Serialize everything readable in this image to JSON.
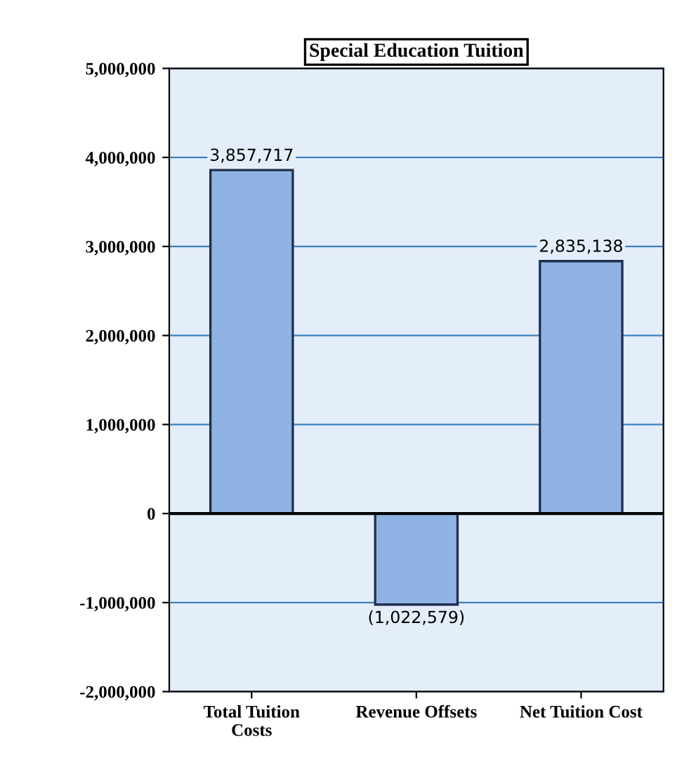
{
  "chart_data": {
    "type": "bar",
    "title": "Special Education Tuition",
    "categories": [
      "Total Tuition\nCosts",
      "Revenue Offsets",
      "Net Tuition Cost"
    ],
    "values": [
      3857717,
      -1022579,
      2835138
    ],
    "value_labels": [
      "3,857,717",
      "(1,022,579)",
      "2,835,138"
    ],
    "color": "#8fb4e3",
    "ylim": [
      -2000000,
      5000000
    ],
    "yticks": [
      {
        "value": -2000000,
        "label": "-2,000,000"
      },
      {
        "value": -1000000,
        "label": "-1,000,000"
      },
      0,
      {
        "value": 1000000,
        "label": "1,000,000"
      },
      {
        "value": 2000000,
        "label": "2,000,000"
      },
      {
        "value": 3000000,
        "label": "3,000,000"
      },
      {
        "value": 4000000,
        "label": "4,000,000"
      },
      {
        "value": 5000000,
        "label": "5,000,000"
      }
    ],
    "grid": "y",
    "legend": false
  }
}
